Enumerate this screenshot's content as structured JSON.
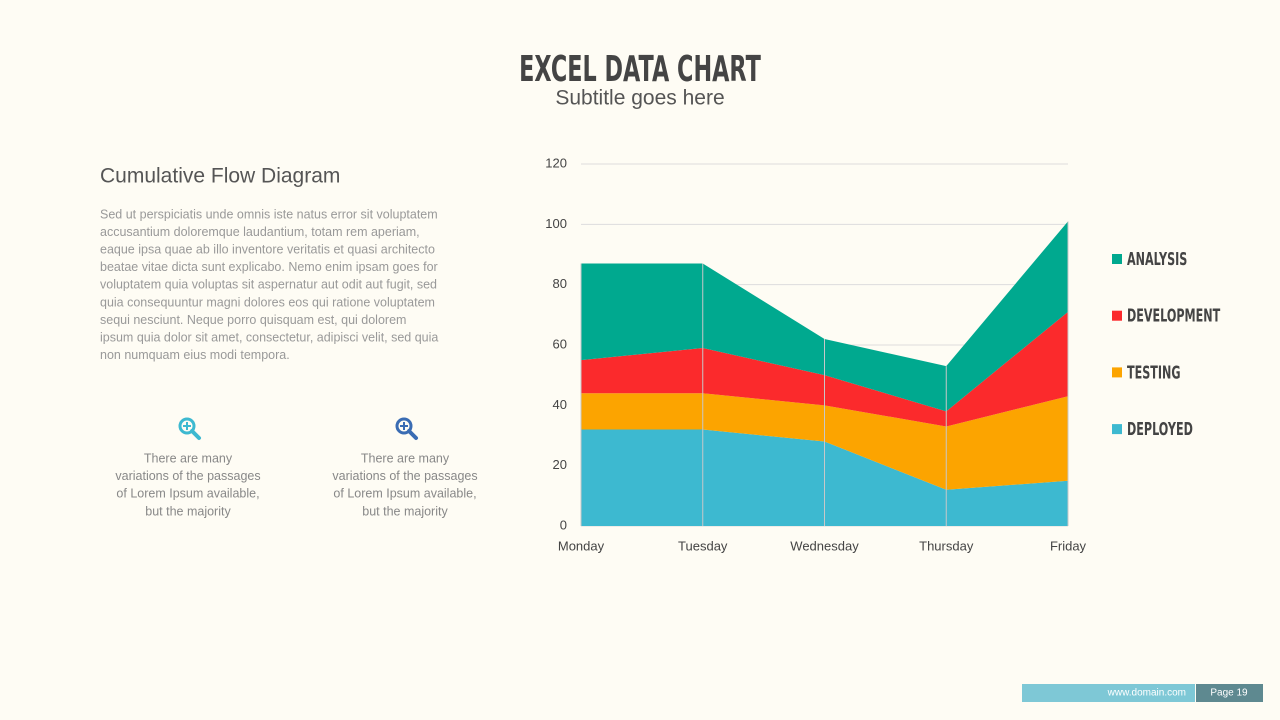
{
  "title": "EXCEL DATA CHART",
  "subtitle": "Subtitle goes here",
  "section": {
    "heading": "Cumulative Flow Diagram",
    "paragraph": [
      "Sed ut perspiciatis unde omnis iste natus error sit voluptatem",
      "accusantium doloremque laudantium, totam rem aperiam,",
      "eaque ipsa quae ab illo inventore veritatis et quasi architecto",
      "beatae vitae dicta sunt explicabo. Nemo enim ipsam goes  for",
      "voluptatem quia voluptas sit aspernatur aut odit aut fugit, sed",
      "quia consequuntur magni dolores eos qui ratione voluptatem",
      "sequi nesciunt. Neque porro quisquam est, qui dolorem",
      "ipsum quia dolor sit amet, consectetur, adipisci velit, sed quia",
      "non numquam eius modi tempora."
    ]
  },
  "features": [
    {
      "lines": [
        "There are many",
        "variations of the passages",
        "of Lorem Ipsum available,",
        "but the majority"
      ]
    },
    {
      "lines": [
        "There are many",
        "variations of the passages",
        "of Lorem Ipsum available,",
        "but the majority"
      ]
    }
  ],
  "footer": {
    "url": "www.domain.com",
    "page": "Page 19"
  },
  "chart_data": {
    "type": "stacked_area",
    "categories": [
      "Monday",
      "Tuesday",
      "Wednesday",
      "Thursday",
      "Friday"
    ],
    "series": [
      {
        "name": "DEPLOYED",
        "color": "#3db9d0",
        "values": [
          32,
          32,
          28,
          12,
          15
        ]
      },
      {
        "name": "TESTING",
        "color": "#fca400",
        "values": [
          12,
          12,
          12,
          21,
          28
        ]
      },
      {
        "name": "DEVELOPMENT",
        "color": "#fb2a2c",
        "values": [
          11,
          15,
          10,
          5,
          28
        ]
      },
      {
        "name": "ANALYSIS",
        "color": "#00a98f",
        "values": [
          32,
          28,
          12,
          15,
          30
        ]
      }
    ],
    "ylim": [
      0,
      120
    ],
    "yticks": [
      0,
      20,
      40,
      60,
      80,
      100,
      120
    ],
    "grid": true,
    "legend": "right"
  }
}
